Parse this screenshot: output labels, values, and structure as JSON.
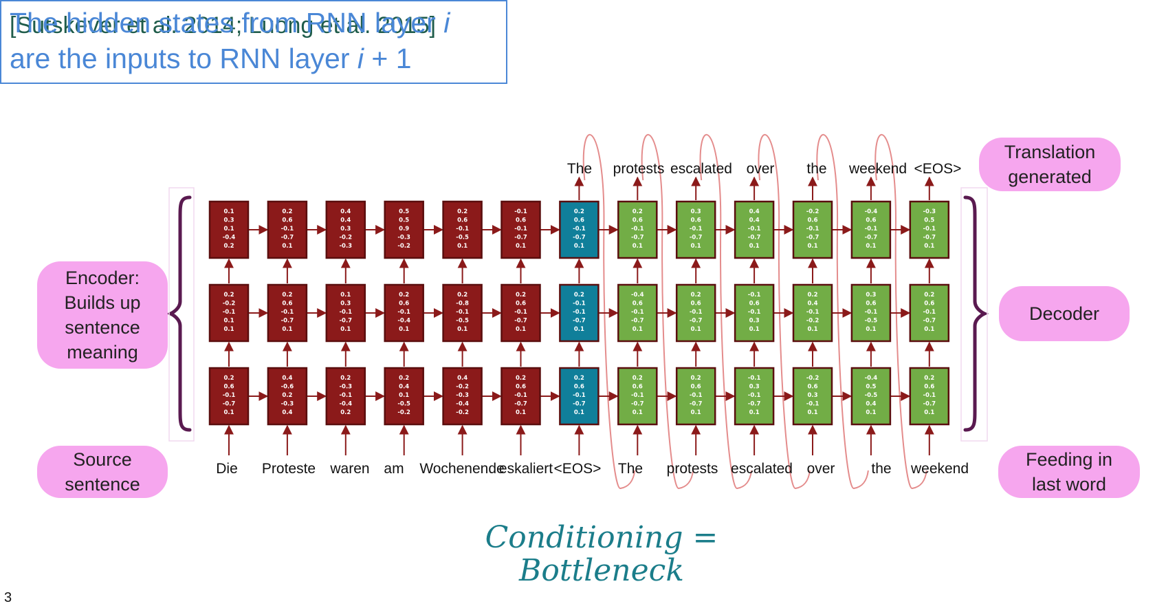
{
  "citation": "[Sutskever et al. 2014; Luong et al. 2015]",
  "callout": {
    "line1_pre": "The hidden states from RNN layer ",
    "line1_var": "i",
    "line2_pre": "are the inputs to RNN layer ",
    "line2_var": "i",
    "line2_post": " + 1"
  },
  "labels": {
    "encoder": [
      "Encoder:",
      "Builds up",
      "sentence",
      "meaning"
    ],
    "source": [
      "Source",
      "sentence"
    ],
    "translation": [
      "Translation",
      "generated"
    ],
    "decoder": [
      "Decoder"
    ],
    "feeding": [
      "Feeding in",
      "last word"
    ]
  },
  "handwritten": [
    "Conditioning =",
    "Bottleneck"
  ],
  "page_number": "3",
  "colors": {
    "encoder_cell": "#8b1a1a",
    "bottleneck_cell": "#107f9a",
    "decoder_cell": "#72ad46",
    "cell_border": "#5a0e0e",
    "arrow": "#8b1a1a",
    "feedback_loop": "#e48c8c",
    "brace": "#5a1a50",
    "pill": "#f6a6ee",
    "callout": "#4a87d6"
  },
  "input_words": [
    "Die",
    "Proteste",
    "waren",
    "am",
    "Wochenende",
    "eskaliert",
    "<EOS>",
    "The",
    "protests",
    "escalated",
    "over",
    "the",
    "weekend"
  ],
  "output_words": [
    "The",
    "protests",
    "escalated",
    "over",
    "the",
    "weekend",
    "<EOS>"
  ],
  "columns": [
    {
      "kind": "encoder",
      "layers": [
        [
          "0.1",
          "0.3",
          "0.1",
          "-0.4",
          "0.2"
        ],
        [
          "0.2",
          "-0.2",
          "-0.1",
          "0.1",
          "0.1"
        ],
        [
          "0.2",
          "0.6",
          "-0.1",
          "-0.7",
          "0.1"
        ]
      ]
    },
    {
      "kind": "encoder",
      "layers": [
        [
          "0.2",
          "0.6",
          "-0.1",
          "-0.7",
          "0.1"
        ],
        [
          "0.2",
          "0.6",
          "-0.1",
          "-0.7",
          "0.1"
        ],
        [
          "0.4",
          "-0.6",
          "0.2",
          "-0.3",
          "0.4"
        ]
      ]
    },
    {
      "kind": "encoder",
      "layers": [
        [
          "0.4",
          "0.4",
          "0.3",
          "-0.2",
          "-0.3"
        ],
        [
          "0.1",
          "0.3",
          "-0.1",
          "-0.7",
          "0.1"
        ],
        [
          "0.2",
          "-0.3",
          "-0.1",
          "-0.4",
          "0.2"
        ]
      ]
    },
    {
      "kind": "encoder",
      "layers": [
        [
          "0.5",
          "0.5",
          "0.9",
          "-0.3",
          "-0.2"
        ],
        [
          "0.2",
          "0.6",
          "-0.1",
          "-0.4",
          "0.1"
        ],
        [
          "0.2",
          "0.4",
          "0.1",
          "-0.5",
          "-0.2"
        ]
      ]
    },
    {
      "kind": "encoder",
      "layers": [
        [
          "0.2",
          "0.6",
          "-0.1",
          "-0.5",
          "0.1"
        ],
        [
          "0.2",
          "-0.8",
          "-0.1",
          "-0.5",
          "0.1"
        ],
        [
          "0.4",
          "-0.2",
          "-0.3",
          "-0.4",
          "-0.2"
        ]
      ]
    },
    {
      "kind": "encoder",
      "layers": [
        [
          "-0.1",
          "0.6",
          "-0.1",
          "-0.7",
          "0.1"
        ],
        [
          "0.2",
          "0.6",
          "-0.1",
          "-0.7",
          "0.1"
        ],
        [
          "0.2",
          "0.6",
          "-0.1",
          "-0.7",
          "0.1"
        ]
      ]
    },
    {
      "kind": "bottleneck",
      "layers": [
        [
          "0.2",
          "0.6",
          "-0.1",
          "-0.7",
          "0.1"
        ],
        [
          "0.2",
          "-0.1",
          "-0.1",
          "-0.7",
          "0.1"
        ],
        [
          "0.2",
          "0.6",
          "-0.1",
          "-0.7",
          "0.1"
        ]
      ]
    },
    {
      "kind": "decoder",
      "layers": [
        [
          "0.2",
          "0.6",
          "-0.1",
          "-0.7",
          "0.1"
        ],
        [
          "-0.4",
          "0.6",
          "-0.1",
          "-0.7",
          "0.1"
        ],
        [
          "0.2",
          "0.6",
          "-0.1",
          "-0.7",
          "0.1"
        ]
      ]
    },
    {
      "kind": "decoder",
      "layers": [
        [
          "0.3",
          "0.6",
          "-0.1",
          "-0.7",
          "0.1"
        ],
        [
          "0.2",
          "0.6",
          "-0.1",
          "-0.7",
          "0.1"
        ],
        [
          "0.2",
          "0.6",
          "-0.1",
          "-0.7",
          "0.1"
        ]
      ]
    },
    {
      "kind": "decoder",
      "layers": [
        [
          "0.4",
          "0.4",
          "-0.1",
          "-0.7",
          "0.1"
        ],
        [
          "-0.1",
          "0.6",
          "-0.1",
          "0.3",
          "0.1"
        ],
        [
          "-0.1",
          "0.3",
          "-0.1",
          "-0.7",
          "0.1"
        ]
      ]
    },
    {
      "kind": "decoder",
      "layers": [
        [
          "-0.2",
          "0.6",
          "-0.1",
          "-0.7",
          "0.1"
        ],
        [
          "0.2",
          "0.4",
          "-0.1",
          "-0.2",
          "0.1"
        ],
        [
          "-0.2",
          "0.6",
          "0.3",
          "-0.1",
          "0.1"
        ]
      ]
    },
    {
      "kind": "decoder",
      "layers": [
        [
          "-0.4",
          "0.6",
          "-0.1",
          "-0.7",
          "0.1"
        ],
        [
          "0.3",
          "0.6",
          "-0.1",
          "-0.5",
          "0.1"
        ],
        [
          "-0.4",
          "0.5",
          "-0.5",
          "0.4",
          "0.1"
        ]
      ]
    },
    {
      "kind": "decoder",
      "layers": [
        [
          "-0.3",
          "0.5",
          "-0.1",
          "-0.7",
          "0.1"
        ],
        [
          "0.2",
          "0.6",
          "-0.1",
          "-0.7",
          "0.1"
        ],
        [
          "0.2",
          "0.6",
          "-0.1",
          "-0.7",
          "0.1"
        ]
      ]
    }
  ]
}
